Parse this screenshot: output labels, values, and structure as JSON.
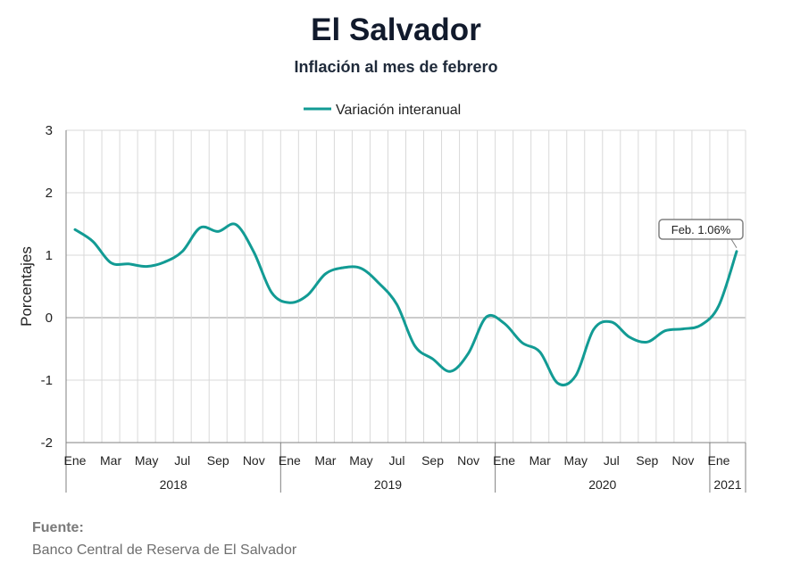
{
  "chart_data": {
    "type": "line",
    "title": "El Salvador",
    "subtitle": "Inflación al mes de febrero",
    "ylabel": "Porcentajes",
    "ylim": [
      -2,
      3
    ],
    "yticks": [
      3,
      2,
      1,
      0,
      -1,
      -2
    ],
    "grid": true,
    "legend_position": "top-center",
    "month_labels": [
      "Ene",
      "Mar",
      "May",
      "Jul",
      "Sep",
      "Nov",
      "Ene",
      "Mar",
      "May",
      "Jul",
      "Sep",
      "Nov",
      "Ene",
      "Mar",
      "May",
      "Jul",
      "Sep",
      "Nov",
      "Ene"
    ],
    "years": [
      {
        "label": "2018",
        "start": "2018-01",
        "end": "2018-12"
      },
      {
        "label": "2019",
        "start": "2019-01",
        "end": "2019-12"
      },
      {
        "label": "2020",
        "start": "2020-01",
        "end": "2020-12"
      },
      {
        "label": "2021",
        "start": "2021-01",
        "end": "2021-02"
      }
    ],
    "series": [
      {
        "name": "Variación interanual",
        "color": "#129b94",
        "x": [
          "2018-01",
          "2018-02",
          "2018-03",
          "2018-04",
          "2018-05",
          "2018-06",
          "2018-07",
          "2018-08",
          "2018-09",
          "2018-10",
          "2018-11",
          "2018-12",
          "2019-01",
          "2019-02",
          "2019-03",
          "2019-04",
          "2019-05",
          "2019-06",
          "2019-07",
          "2019-08",
          "2019-09",
          "2019-10",
          "2019-11",
          "2019-12",
          "2020-01",
          "2020-02",
          "2020-03",
          "2020-04",
          "2020-05",
          "2020-06",
          "2020-07",
          "2020-08",
          "2020-09",
          "2020-10",
          "2020-11",
          "2020-12",
          "2021-01",
          "2021-02"
        ],
        "values": [
          1.41,
          1.22,
          0.88,
          0.86,
          0.82,
          0.89,
          1.06,
          1.44,
          1.38,
          1.49,
          1.05,
          0.4,
          0.24,
          0.36,
          0.7,
          0.8,
          0.79,
          0.55,
          0.21,
          -0.45,
          -0.66,
          -0.86,
          -0.57,
          0.01,
          -0.09,
          -0.4,
          -0.55,
          -1.05,
          -0.93,
          -0.19,
          -0.07,
          -0.31,
          -0.39,
          -0.21,
          -0.18,
          -0.12,
          0.19,
          1.06
        ]
      }
    ],
    "annotation": {
      "text": "Feb. 1.06%",
      "x": "2021-02",
      "y": 1.06
    }
  },
  "source": {
    "label": "Fuente:",
    "text": "Banco Central de Reserva de El Salvador"
  }
}
